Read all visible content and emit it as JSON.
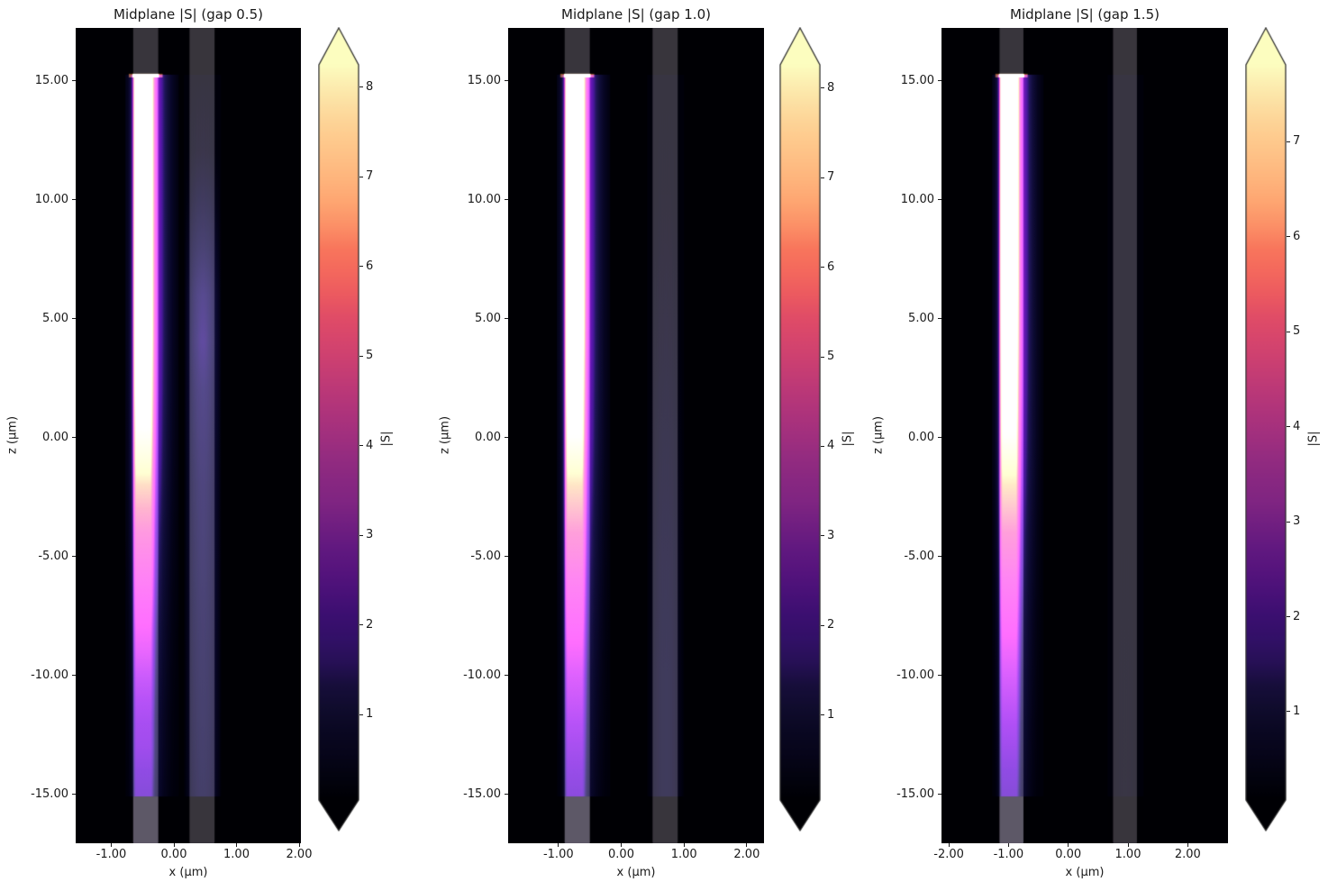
{
  "figure": {
    "background": "#ffffff",
    "text_color": "#1a1a1a",
    "heatmap_background": "#000004",
    "waveguide_overlay_color": "#38353c",
    "below_monitor_overlay": "rgba(150,142,168,0.40)",
    "colormap_name": "magma",
    "colormap_stops": [
      [
        0.0,
        "#000004"
      ],
      [
        0.05,
        "#050416"
      ],
      [
        0.1,
        "#0b0924"
      ],
      [
        0.15,
        "#140e36"
      ],
      [
        0.2,
        "#2d1161"
      ],
      [
        0.25,
        "#3b0f70"
      ],
      [
        0.3,
        "#51127c"
      ],
      [
        0.35,
        "#641a80"
      ],
      [
        0.4,
        "#7e2482"
      ],
      [
        0.45,
        "#8c2981"
      ],
      [
        0.5,
        "#a3307e"
      ],
      [
        0.55,
        "#b73779"
      ],
      [
        0.6,
        "#cd4071"
      ],
      [
        0.65,
        "#de4968"
      ],
      [
        0.7,
        "#f1605d"
      ],
      [
        0.75,
        "#f8765c"
      ],
      [
        0.8,
        "#fe9f6d"
      ],
      [
        0.85,
        "#feb77e"
      ],
      [
        0.9,
        "#feca8d"
      ],
      [
        0.95,
        "#fce0a4"
      ],
      [
        1.0,
        "#fcfdbf"
      ]
    ]
  },
  "panels": [
    {
      "title": "Midplane |S| (gap 0.5)",
      "xlabel": "x (μm)",
      "ylabel": "z (μm)",
      "x_tick_labels": [
        "-1.00",
        "0.00",
        "1.00",
        "2.00"
      ],
      "y_tick_labels": [
        "15.00",
        "10.00",
        "5.00",
        "0.00",
        "-5.00",
        "-10.00",
        "-15.00"
      ],
      "colorbar": {
        "label": "|S|",
        "tick_labels": [
          "8",
          "7",
          "6",
          "5",
          "4",
          "3",
          "2",
          "1"
        ]
      }
    },
    {
      "title": "Midplane |S| (gap 1.0)",
      "xlabel": "x (μm)",
      "ylabel": "z (μm)",
      "x_tick_labels": [
        "-1.00",
        "0.00",
        "1.00",
        "2.00"
      ],
      "y_tick_labels": [
        "15.00",
        "10.00",
        "5.00",
        "0.00",
        "-5.00",
        "-10.00",
        "-15.00"
      ],
      "colorbar": {
        "label": "|S|",
        "tick_labels": [
          "8",
          "7",
          "6",
          "5",
          "4",
          "3",
          "2",
          "1"
        ]
      }
    },
    {
      "title": "Midplane |S| (gap 1.5)",
      "xlabel": "x (μm)",
      "ylabel": "z (μm)",
      "x_tick_labels": [
        "-2.00",
        "-1.00",
        "0.00",
        "1.00",
        "2.00"
      ],
      "y_tick_labels": [
        "15.00",
        "10.00",
        "5.00",
        "0.00",
        "-5.00",
        "-10.00",
        "-15.00"
      ],
      "colorbar": {
        "label": "|S|",
        "tick_labels": [
          "7",
          "6",
          "5",
          "4",
          "3",
          "2",
          "1"
        ]
      }
    }
  ],
  "chart_data": [
    {
      "type": "heatmap",
      "title": "Midplane |S| (gap 0.5)",
      "xlabel": "x (μm)",
      "ylabel": "z (μm)",
      "gap": 0.5,
      "xlim": [
        -1.57,
        2.03
      ],
      "ylim": [
        -17.1,
        17.2
      ],
      "x_ticks": [
        -1,
        0,
        1,
        2
      ],
      "y_ticks": [
        15,
        10,
        5,
        0,
        -5,
        -10,
        -15
      ],
      "waveguides": [
        [
          -0.65,
          -0.25
        ],
        [
          0.25,
          0.65
        ]
      ],
      "source_z": 15.25,
      "field_zmin": -15.1,
      "colorbar": {
        "label": "|S|",
        "ticks": [
          8,
          7,
          6,
          5,
          4,
          3,
          2,
          1
        ],
        "vmin": 0.05,
        "vmax": 8.25,
        "extend": "both"
      },
      "core_profile": [
        [
          15.25,
          8.3
        ],
        [
          10,
          8.3
        ],
        [
          6,
          8.2
        ],
        [
          4,
          8.0
        ],
        [
          2,
          7.6
        ],
        [
          0,
          7.0
        ],
        [
          -1,
          6.6
        ],
        [
          -2,
          6.1
        ],
        [
          -3,
          5.6
        ],
        [
          -4,
          5.1
        ],
        [
          -5,
          4.7
        ],
        [
          -6,
          4.3
        ],
        [
          -7,
          3.9
        ],
        [
          -8,
          3.5
        ],
        [
          -9,
          3.2
        ],
        [
          -10,
          2.9
        ],
        [
          -11,
          2.6
        ],
        [
          -12,
          2.4
        ],
        [
          -13,
          2.3
        ],
        [
          -14,
          2.1
        ],
        [
          -15.1,
          1.9
        ]
      ],
      "coupled_profile": [
        [
          15.25,
          0
        ],
        [
          12,
          0.2
        ],
        [
          10,
          0.5
        ],
        [
          8,
          0.9
        ],
        [
          6,
          1.3
        ],
        [
          4,
          1.4
        ],
        [
          2,
          1.25
        ],
        [
          0,
          1.15
        ],
        [
          -2,
          1.05
        ],
        [
          -4,
          1.0
        ],
        [
          -6,
          0.95
        ],
        [
          -8,
          0.9
        ],
        [
          -10,
          0.85
        ],
        [
          -12,
          0.8
        ],
        [
          -15.1,
          0.7
        ]
      ],
      "transverse_profile": [
        [
          -0.1,
          0.04
        ],
        [
          -0.05,
          0.12
        ],
        [
          -0.02,
          0.3
        ],
        [
          0.0,
          0.7
        ],
        [
          0.03,
          1.0
        ],
        [
          0.27,
          1.0
        ],
        [
          0.31,
          0.72
        ],
        [
          0.35,
          0.45
        ],
        [
          0.4,
          0.3
        ],
        [
          0.47,
          0.18
        ],
        [
          0.55,
          0.1
        ],
        [
          0.62,
          0.05
        ],
        [
          0.7,
          0.02
        ]
      ]
    },
    {
      "type": "heatmap",
      "title": "Midplane |S| (gap 1.0)",
      "xlabel": "x (μm)",
      "ylabel": "z (μm)",
      "gap": 1.0,
      "xlim": [
        -1.8,
        2.27
      ],
      "ylim": [
        -17.1,
        17.2
      ],
      "x_ticks": [
        -1,
        0,
        1,
        2
      ],
      "y_ticks": [
        15,
        10,
        5,
        0,
        -5,
        -10,
        -15
      ],
      "waveguides": [
        [
          -0.9,
          -0.5
        ],
        [
          0.5,
          0.9
        ]
      ],
      "source_z": 15.25,
      "field_zmin": -15.1,
      "colorbar": {
        "label": "|S|",
        "ticks": [
          8,
          7,
          6,
          5,
          4,
          3,
          2,
          1
        ],
        "vmin": 0.05,
        "vmax": 8.26,
        "extend": "both"
      },
      "core_profile": [
        [
          15.25,
          8.3
        ],
        [
          10,
          8.3
        ],
        [
          6,
          8.2
        ],
        [
          4,
          8.0
        ],
        [
          2,
          7.6
        ],
        [
          0,
          7.1
        ],
        [
          -2,
          6.2
        ],
        [
          -4,
          5.3
        ],
        [
          -6,
          4.5
        ],
        [
          -8,
          3.8
        ],
        [
          -10,
          3.1
        ],
        [
          -12,
          2.6
        ],
        [
          -14,
          2.2
        ],
        [
          -15.1,
          2.0
        ]
      ],
      "coupled_profile": [
        [
          15.25,
          0
        ],
        [
          10,
          0.1
        ],
        [
          5,
          0.2
        ],
        [
          0,
          0.3
        ],
        [
          -5,
          0.4
        ],
        [
          -10,
          0.45
        ],
        [
          -15.1,
          0.45
        ]
      ],
      "transverse_profile": [
        [
          -0.1,
          0.04
        ],
        [
          -0.05,
          0.12
        ],
        [
          -0.02,
          0.3
        ],
        [
          0.0,
          0.7
        ],
        [
          0.03,
          1.0
        ],
        [
          0.27,
          1.0
        ],
        [
          0.31,
          0.72
        ],
        [
          0.35,
          0.45
        ],
        [
          0.4,
          0.3
        ],
        [
          0.47,
          0.18
        ],
        [
          0.55,
          0.1
        ],
        [
          0.62,
          0.05
        ],
        [
          0.7,
          0.02
        ]
      ]
    },
    {
      "type": "heatmap",
      "title": "Midplane |S| (gap 1.5)",
      "xlabel": "x (μm)",
      "ylabel": "z (μm)",
      "gap": 1.5,
      "xlim": [
        -2.12,
        2.67
      ],
      "ylim": [
        -17.1,
        17.2
      ],
      "x_ticks": [
        -2,
        -1,
        0,
        1,
        2
      ],
      "y_ticks": [
        15,
        10,
        5,
        0,
        -5,
        -10,
        -15
      ],
      "waveguides": [
        [
          -1.15,
          -0.75
        ],
        [
          0.75,
          1.15
        ]
      ],
      "source_z": 15.25,
      "field_zmin": -15.1,
      "colorbar": {
        "label": "|S|",
        "ticks": [
          7,
          6,
          5,
          4,
          3,
          2,
          1
        ],
        "vmin": 0.07,
        "vmax": 7.81,
        "extend": "both"
      },
      "core_profile": [
        [
          15.25,
          7.9
        ],
        [
          10,
          7.9
        ],
        [
          6,
          7.8
        ],
        [
          4,
          7.6
        ],
        [
          2,
          7.2
        ],
        [
          0,
          6.7
        ],
        [
          -2,
          5.9
        ],
        [
          -4,
          5.0
        ],
        [
          -6,
          4.2
        ],
        [
          -8,
          3.5
        ],
        [
          -10,
          2.9
        ],
        [
          -12,
          2.4
        ],
        [
          -14,
          2.0
        ],
        [
          -15.1,
          1.8
        ]
      ],
      "coupled_profile": [
        [
          15.25,
          0
        ],
        [
          0,
          0.08
        ],
        [
          -15.1,
          0.12
        ]
      ],
      "transverse_profile": [
        [
          -0.1,
          0.04
        ],
        [
          -0.05,
          0.12
        ],
        [
          -0.02,
          0.3
        ],
        [
          0.0,
          0.7
        ],
        [
          0.03,
          1.0
        ],
        [
          0.27,
          1.0
        ],
        [
          0.31,
          0.72
        ],
        [
          0.35,
          0.45
        ],
        [
          0.4,
          0.3
        ],
        [
          0.47,
          0.18
        ],
        [
          0.55,
          0.1
        ],
        [
          0.62,
          0.05
        ],
        [
          0.7,
          0.02
        ]
      ]
    }
  ]
}
